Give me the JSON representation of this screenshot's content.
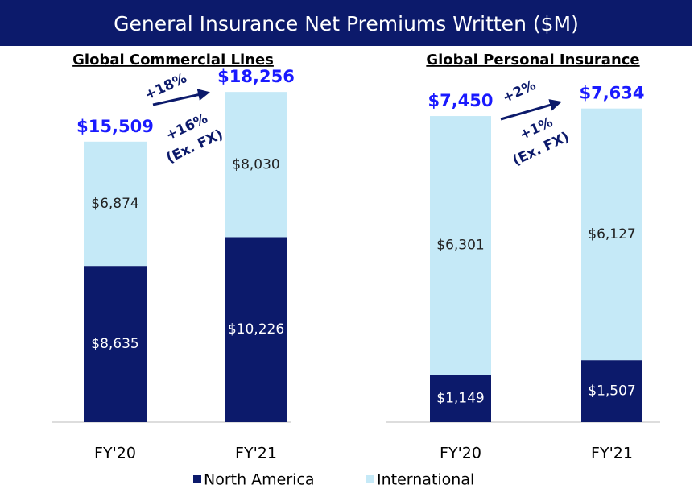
{
  "title": "General Insurance Net Premiums Written ($M)",
  "chart_data": [
    {
      "type": "bar",
      "stacked": true,
      "title": "Global Commercial Lines",
      "categories": [
        "FY'20",
        "FY'21"
      ],
      "series": [
        {
          "name": "North America",
          "color": "#0c1a6b",
          "values": [
            8635,
            10226
          ],
          "value_labels": [
            "$8,635",
            "$10,226"
          ]
        },
        {
          "name": "International",
          "color": "#c5e9f7",
          "values": [
            6874,
            8030
          ],
          "value_labels": [
            "$6,874",
            "$8,030"
          ]
        }
      ],
      "totals": [
        15509,
        18256
      ],
      "total_labels": [
        "$15,509",
        "$18,256"
      ],
      "annotations": [
        "+18%",
        "+16%",
        "(Ex. FX)"
      ],
      "ylim": [
        0,
        20000
      ]
    },
    {
      "type": "bar",
      "stacked": true,
      "title": "Global Personal Insurance",
      "categories": [
        "FY'20",
        "FY'21"
      ],
      "series": [
        {
          "name": "North America",
          "color": "#0c1a6b",
          "values": [
            1149,
            1507
          ],
          "value_labels": [
            "$1,149",
            "$1,507"
          ]
        },
        {
          "name": "International",
          "color": "#c5e9f7",
          "values": [
            6301,
            6127
          ],
          "value_labels": [
            "$6,301",
            "$6,127"
          ]
        }
      ],
      "totals": [
        7450,
        7634
      ],
      "total_labels": [
        "$7,450",
        "$7,634"
      ],
      "annotations": [
        "+2%",
        "+1%",
        "(Ex. FX)"
      ],
      "ylim": [
        0,
        8000
      ]
    }
  ]
}
